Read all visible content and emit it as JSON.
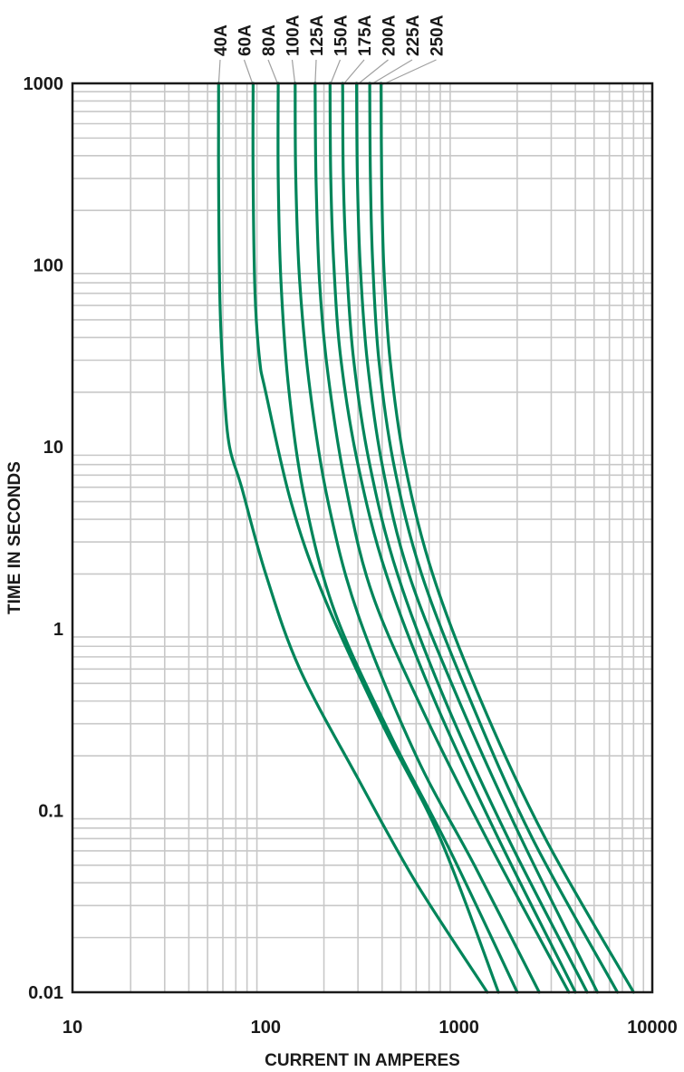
{
  "chart_data": {
    "type": "line",
    "title": "",
    "xlabel": "CURRENT IN AMPERES",
    "ylabel": "TIME IN SECONDS",
    "xscale": "log",
    "yscale": "log",
    "xlim": [
      10,
      10000
    ],
    "ylim": [
      0.01,
      1000
    ],
    "xticks": [
      10,
      100,
      1000,
      10000
    ],
    "xtick_labels": [
      "10",
      "100",
      "1000",
      "10000"
    ],
    "yticks": [
      0.01,
      0.1,
      1,
      10,
      100,
      1000
    ],
    "ytick_labels": [
      "0.01",
      "0.1",
      "1",
      "10",
      "100",
      "1000"
    ],
    "grid": true,
    "line_color": "#00855a",
    "series": [
      {
        "name": "40A",
        "points": [
          [
            57,
            1000
          ],
          [
            57,
            300
          ],
          [
            58,
            60
          ],
          [
            61,
            20
          ],
          [
            65,
            10
          ],
          [
            75,
            6
          ],
          [
            100,
            2
          ],
          [
            150,
            0.6
          ],
          [
            300,
            0.15
          ],
          [
            600,
            0.04
          ],
          [
            1400,
            0.01
          ]
        ]
      },
      {
        "name": "60A",
        "points": [
          [
            86,
            1000
          ],
          [
            86,
            300
          ],
          [
            88,
            70
          ],
          [
            93,
            30
          ],
          [
            100,
            20
          ],
          [
            135,
            5
          ],
          [
            200,
            1.5
          ],
          [
            400,
            0.3
          ],
          [
            800,
            0.07
          ],
          [
            1600,
            0.01
          ]
        ]
      },
      {
        "name": "80A",
        "points": [
          [
            116,
            1000
          ],
          [
            116,
            300
          ],
          [
            120,
            80
          ],
          [
            132,
            20
          ],
          [
            160,
            5
          ],
          [
            230,
            1.2
          ],
          [
            450,
            0.25
          ],
          [
            900,
            0.06
          ],
          [
            2000,
            0.01
          ]
        ]
      },
      {
        "name": "100A",
        "points": [
          [
            142,
            1000
          ],
          [
            143,
            300
          ],
          [
            150,
            80
          ],
          [
            170,
            20
          ],
          [
            210,
            5
          ],
          [
            300,
            1.2
          ],
          [
            600,
            0.2
          ],
          [
            1200,
            0.05
          ],
          [
            2600,
            0.01
          ]
        ]
      },
      {
        "name": "125A",
        "points": [
          [
            180,
            1000
          ],
          [
            182,
            300
          ],
          [
            190,
            80
          ],
          [
            210,
            25
          ],
          [
            260,
            6
          ],
          [
            360,
            1.5
          ],
          [
            700,
            0.3
          ],
          [
            1500,
            0.06
          ],
          [
            3700,
            0.01
          ]
        ]
      },
      {
        "name": "150A",
        "points": [
          [
            215,
            1000
          ],
          [
            217,
            300
          ],
          [
            225,
            100
          ],
          [
            245,
            30
          ],
          [
            300,
            8
          ],
          [
            420,
            2
          ],
          [
            750,
            0.4
          ],
          [
            1600,
            0.07
          ],
          [
            4000,
            0.01
          ]
        ]
      },
      {
        "name": "175A",
        "points": [
          [
            250,
            1000
          ],
          [
            252,
            300
          ],
          [
            262,
            100
          ],
          [
            285,
            30
          ],
          [
            345,
            8
          ],
          [
            480,
            2
          ],
          [
            850,
            0.4
          ],
          [
            1800,
            0.07
          ],
          [
            4600,
            0.01
          ]
        ]
      },
      {
        "name": "200A",
        "points": [
          [
            295,
            1000
          ],
          [
            298,
            300
          ],
          [
            308,
            100
          ],
          [
            335,
            30
          ],
          [
            400,
            8
          ],
          [
            550,
            2
          ],
          [
            1000,
            0.4
          ],
          [
            2100,
            0.07
          ],
          [
            5200,
            0.01
          ]
        ]
      },
      {
        "name": "225A",
        "points": [
          [
            345,
            1000
          ],
          [
            348,
            300
          ],
          [
            358,
            100
          ],
          [
            385,
            30
          ],
          [
            460,
            8
          ],
          [
            640,
            2
          ],
          [
            1150,
            0.4
          ],
          [
            2400,
            0.07
          ],
          [
            6600,
            0.01
          ]
        ]
      },
      {
        "name": "250A",
        "points": [
          [
            395,
            1000
          ],
          [
            398,
            300
          ],
          [
            408,
            100
          ],
          [
            440,
            30
          ],
          [
            525,
            8
          ],
          [
            730,
            2
          ],
          [
            1300,
            0.4
          ],
          [
            2800,
            0.07
          ],
          [
            8000,
            0.01
          ]
        ]
      }
    ]
  }
}
